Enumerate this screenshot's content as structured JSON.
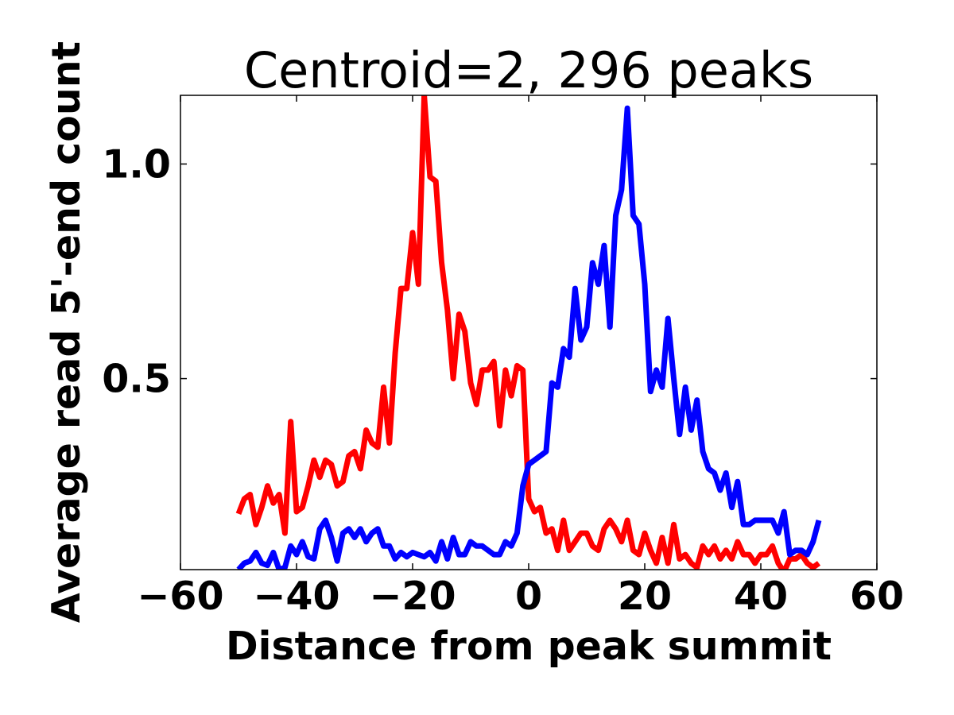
{
  "chart_data": {
    "type": "line",
    "title": "Centroid=2, 296 peaks",
    "xlabel": "Distance from peak summit",
    "ylabel": "Average read 5'-end count",
    "xlim": [
      -60,
      60
    ],
    "ylim": [
      0.055,
      1.16
    ],
    "xticks": [
      -60,
      -40,
      -20,
      0,
      20,
      40,
      60
    ],
    "xtick_labels": [
      "−60",
      "−40",
      "−20",
      "0",
      "20",
      "40",
      "60"
    ],
    "yticks": [
      0.5,
      1.0
    ],
    "ytick_labels": [
      "0.5",
      "1.0"
    ],
    "grid": false,
    "legend": "none",
    "x": [
      -50,
      -49,
      -48,
      -47,
      -46,
      -45,
      -44,
      -43,
      -42,
      -41,
      -40,
      -39,
      -38,
      -37,
      -36,
      -35,
      -34,
      -33,
      -32,
      -31,
      -30,
      -29,
      -28,
      -27,
      -26,
      -25,
      -24,
      -23,
      -22,
      -21,
      -20,
      -19,
      -18,
      -17,
      -16,
      -15,
      -14,
      -13,
      -12,
      -11,
      -10,
      -9,
      -8,
      -7,
      -6,
      -5,
      -4,
      -3,
      -2,
      -1,
      0,
      1,
      2,
      3,
      4,
      5,
      6,
      7,
      8,
      9,
      10,
      11,
      12,
      13,
      14,
      15,
      16,
      17,
      18,
      19,
      20,
      21,
      22,
      23,
      24,
      25,
      26,
      27,
      28,
      29,
      30,
      31,
      32,
      33,
      34,
      35,
      36,
      37,
      38,
      39,
      40,
      41,
      42,
      43,
      44,
      45,
      46,
      47,
      48,
      49,
      50
    ],
    "series": [
      {
        "color": "#ff0000",
        "values": [
          0.185,
          0.22,
          0.23,
          0.16,
          0.2,
          0.25,
          0.21,
          0.23,
          0.14,
          0.4,
          0.19,
          0.2,
          0.25,
          0.31,
          0.27,
          0.31,
          0.3,
          0.25,
          0.26,
          0.32,
          0.33,
          0.29,
          0.38,
          0.35,
          0.34,
          0.48,
          0.35,
          0.56,
          0.71,
          0.71,
          0.84,
          0.72,
          1.16,
          0.97,
          0.96,
          0.77,
          0.66,
          0.5,
          0.65,
          0.61,
          0.49,
          0.44,
          0.52,
          0.52,
          0.54,
          0.39,
          0.52,
          0.46,
          0.53,
          0.52,
          0.22,
          0.19,
          0.2,
          0.14,
          0.15,
          0.1,
          0.17,
          0.1,
          0.12,
          0.14,
          0.14,
          0.11,
          0.1,
          0.15,
          0.17,
          0.15,
          0.12,
          0.17,
          0.1,
          0.09,
          0.14,
          0.1,
          0.07,
          0.13,
          0.07,
          0.16,
          0.08,
          0.09,
          0.07,
          0.06,
          0.11,
          0.09,
          0.11,
          0.08,
          0.1,
          0.08,
          0.12,
          0.09,
          0.09,
          0.07,
          0.09,
          0.09,
          0.11,
          0.07,
          0.05,
          0.08,
          0.08,
          0.09,
          0.07,
          0.06,
          0.07
        ]
      },
      {
        "color": "#0000ff",
        "values": [
          0.055,
          0.07,
          0.075,
          0.095,
          0.07,
          0.065,
          0.095,
          0.055,
          0.06,
          0.11,
          0.09,
          0.12,
          0.085,
          0.08,
          0.15,
          0.17,
          0.13,
          0.075,
          0.14,
          0.15,
          0.13,
          0.15,
          0.12,
          0.14,
          0.15,
          0.11,
          0.11,
          0.08,
          0.095,
          0.085,
          0.095,
          0.09,
          0.085,
          0.095,
          0.075,
          0.12,
          0.08,
          0.13,
          0.09,
          0.09,
          0.12,
          0.11,
          0.11,
          0.1,
          0.09,
          0.09,
          0.12,
          0.11,
          0.14,
          0.25,
          0.3,
          0.31,
          0.32,
          0.33,
          0.49,
          0.48,
          0.57,
          0.55,
          0.71,
          0.59,
          0.62,
          0.77,
          0.72,
          0.81,
          0.62,
          0.88,
          0.94,
          1.13,
          0.88,
          0.86,
          0.72,
          0.47,
          0.52,
          0.48,
          0.64,
          0.5,
          0.37,
          0.48,
          0.38,
          0.45,
          0.33,
          0.29,
          0.28,
          0.24,
          0.28,
          0.2,
          0.26,
          0.16,
          0.16,
          0.17,
          0.17,
          0.17,
          0.17,
          0.14,
          0.19,
          0.09,
          0.1,
          0.1,
          0.09,
          0.12,
          0.17
        ]
      }
    ]
  }
}
